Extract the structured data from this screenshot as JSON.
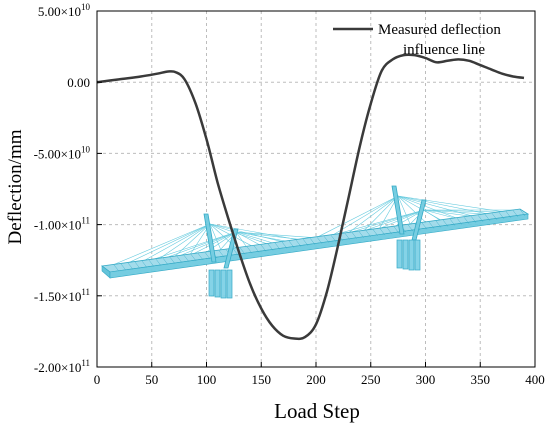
{
  "chart_data": {
    "type": "line",
    "xlabel": "Load Step",
    "ylabel": "Deflection/mm",
    "xlim": [
      0,
      400
    ],
    "ylim": [
      -200000000000,
      50000000000
    ],
    "x_ticks": [
      0,
      50,
      100,
      150,
      200,
      250,
      300,
      350,
      400
    ],
    "x_tick_labels": [
      "0",
      "50",
      "100",
      "150",
      "200",
      "250",
      "300",
      "350",
      "400"
    ],
    "y_ticks": [
      50000000000,
      0,
      -50000000000,
      -100000000000,
      -150000000000,
      -200000000000
    ],
    "y_tick_labels": [
      {
        "mantissa": "5.00×10",
        "exp": "10"
      },
      {
        "mantissa": "0.00",
        "exp": ""
      },
      {
        "mantissa": "-5.00×10",
        "exp": "10"
      },
      {
        "mantissa": "-1.00×10",
        "exp": "11"
      },
      {
        "mantissa": "-1.50×10",
        "exp": "11"
      },
      {
        "mantissa": "-2.00×10",
        "exp": "11"
      }
    ],
    "grid": true,
    "legend_position": "top-right",
    "series": [
      {
        "name": "Measured deflection influence line",
        "legend_lines": [
          "Measured deflection",
          "influence line"
        ],
        "color": "#3a3a3a",
        "x": [
          0,
          20,
          40,
          55,
          65,
          72,
          80,
          90,
          100,
          110,
          120,
          130,
          140,
          150,
          160,
          170,
          180,
          190,
          200,
          210,
          220,
          230,
          240,
          250,
          260,
          270,
          280,
          290,
          300,
          310,
          320,
          330,
          340,
          350,
          360,
          370,
          380,
          390
        ],
        "y": [
          0,
          2000000000,
          4000000000,
          6000000000,
          7500000000,
          7000000000,
          2000000000,
          -15000000000,
          -40000000000,
          -70000000000,
          -96000000000,
          -120000000000,
          -142000000000,
          -159000000000,
          -171000000000,
          -178000000000,
          -180000000000,
          -179000000000,
          -170000000000,
          -147000000000,
          -115000000000,
          -80000000000,
          -45000000000,
          -15000000000,
          8000000000,
          16000000000,
          19000000000,
          19000000000,
          17000000000,
          14000000000,
          15000000000,
          16000000000,
          15000000000,
          12000000000,
          9000000000,
          6000000000,
          4000000000,
          3000000000
        ]
      }
    ],
    "colors": {
      "bridge_fill": "#7fd1e6",
      "bridge_stroke": "#2aa6c4",
      "cable": "#5ec8dd"
    }
  }
}
